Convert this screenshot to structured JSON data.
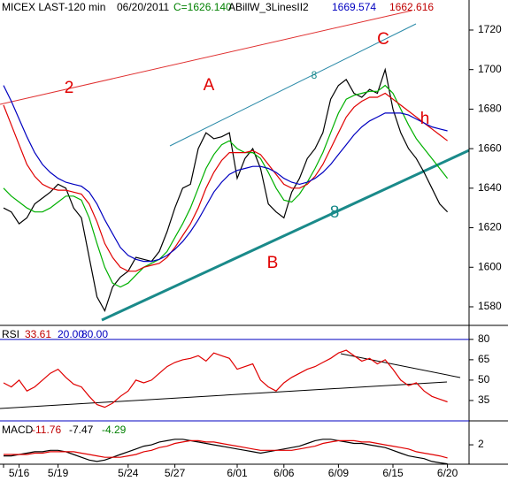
{
  "chart_data": [
    {
      "type": "line",
      "header": [
        {
          "text": "MICEX LAST-120 min",
          "color": "#000000"
        },
        {
          "text": "06/20/2011",
          "color": "#000000"
        },
        {
          "text": "C=1626.140",
          "color": "#008000"
        },
        {
          "text": "ABillW_3LinesII2",
          "color": "#000000"
        },
        {
          "text": "1669.574",
          "color": "#0000c0"
        },
        {
          "text": "1662.616",
          "color": "#c00000"
        }
      ],
      "annotations": [
        {
          "text": "2",
          "color": "#e00000"
        },
        {
          "text": "A",
          "color": "#e00000"
        },
        {
          "text": "C",
          "color": "#e00000"
        },
        {
          "text": "h",
          "color": "#e00000"
        },
        {
          "text": "B",
          "color": "#e00000"
        },
        {
          "text": "8",
          "color": "#1a8a8a"
        },
        {
          "text": "8",
          "color": "#1a8a8a"
        }
      ],
      "categories": [
        "",
        null,
        "5/16",
        null,
        null,
        null,
        null,
        "5/19",
        null,
        null,
        null,
        null,
        null,
        null,
        null,
        null,
        "5/24",
        null,
        null,
        null,
        null,
        null,
        "5/27",
        null,
        null,
        null,
        null,
        null,
        null,
        null,
        "6/01",
        null,
        null,
        null,
        null,
        null,
        "6/06",
        null,
        null,
        null,
        null,
        null,
        null,
        "6/09",
        null,
        null,
        null,
        null,
        null,
        null,
        "6/15",
        null,
        null,
        null,
        null,
        null,
        null,
        "6/20"
      ],
      "series": [
        {
          "color": "#000000",
          "values": [
            1630,
            1628,
            1622,
            1625,
            1632,
            1635,
            1638,
            1642,
            1640,
            1630,
            1625,
            1605,
            1585,
            1578,
            1590,
            1595,
            1598,
            1605,
            1604,
            1603,
            1608,
            1618,
            1630,
            1640,
            1642,
            1660,
            1668,
            1665,
            1666,
            1668,
            1645,
            1655,
            1660,
            1650,
            1632,
            1628,
            1625,
            1638,
            1645,
            1655,
            1660,
            1668,
            1685,
            1692,
            1695,
            1688,
            1686,
            1690,
            1688,
            1700,
            1680,
            1668,
            1660,
            1655,
            1648,
            1640,
            1632,
            1628
          ]
        },
        {
          "color": "#00b000",
          "values": [
            1640,
            1636,
            1633,
            1630,
            1628,
            1628,
            1630,
            1633,
            1636,
            1636,
            1634,
            1625,
            1612,
            1600,
            1592,
            1590,
            1592,
            1596,
            1600,
            1602,
            1604,
            1608,
            1615,
            1622,
            1630,
            1640,
            1650,
            1657,
            1662,
            1664,
            1660,
            1658,
            1658,
            1655,
            1648,
            1640,
            1634,
            1633,
            1637,
            1643,
            1650,
            1658,
            1668,
            1678,
            1685,
            1687,
            1688,
            1689,
            1689,
            1692,
            1688,
            1680,
            1672,
            1665,
            1660,
            1655,
            1650,
            1645
          ]
        },
        {
          "color": "#e00000",
          "values": [
            1682,
            1672,
            1662,
            1652,
            1646,
            1642,
            1640,
            1639,
            1639,
            1638,
            1637,
            1632,
            1623,
            1612,
            1605,
            1600,
            1598,
            1598,
            1600,
            1601,
            1602,
            1605,
            1610,
            1616,
            1622,
            1630,
            1640,
            1648,
            1654,
            1658,
            1658,
            1658,
            1659,
            1657,
            1652,
            1647,
            1642,
            1640,
            1640,
            1642,
            1646,
            1652,
            1660,
            1668,
            1676,
            1681,
            1684,
            1686,
            1686,
            1688,
            1685,
            1682,
            1679,
            1676,
            1673,
            1670,
            1667,
            1664
          ]
        },
        {
          "color": "#0000c0",
          "values": [
            1692,
            1684,
            1675,
            1666,
            1658,
            1652,
            1648,
            1645,
            1643,
            1642,
            1641,
            1638,
            1632,
            1624,
            1617,
            1610,
            1606,
            1604,
            1603,
            1603,
            1604,
            1606,
            1609,
            1613,
            1618,
            1624,
            1631,
            1638,
            1643,
            1647,
            1649,
            1650,
            1651,
            1651,
            1650,
            1648,
            1645,
            1643,
            1642,
            1643,
            1645,
            1648,
            1652,
            1657,
            1662,
            1667,
            1671,
            1674,
            1676,
            1678,
            1678,
            1678,
            1677,
            1675,
            1673,
            1671,
            1670,
            1669
          ]
        }
      ],
      "ylim": [
        1570.6,
        1735.2
      ],
      "yticks": [
        1580,
        1600,
        1620,
        1640,
        1660,
        1680,
        1700,
        1720
      ]
    },
    {
      "type": "line",
      "header": [
        {
          "text": "RSI",
          "color": "#000000"
        },
        {
          "text": "33.61",
          "color": "#c00000"
        },
        {
          "text": "20.00",
          "color": "#0000c0"
        },
        {
          "text": "80.00",
          "color": "#0000c0"
        }
      ],
      "levels": [
        20,
        80
      ],
      "level_color": "#0000c0",
      "series": [
        {
          "color": "#e00000",
          "values": [
            48,
            45,
            50,
            42,
            45,
            50,
            55,
            58,
            52,
            47,
            45,
            38,
            32,
            30,
            33,
            38,
            42,
            50,
            48,
            50,
            55,
            60,
            63,
            65,
            66,
            68,
            64,
            70,
            68,
            66,
            58,
            60,
            62,
            50,
            45,
            42,
            48,
            52,
            55,
            58,
            60,
            63,
            66,
            70,
            72,
            68,
            64,
            66,
            62,
            65,
            58,
            50,
            46,
            48,
            42,
            38,
            36,
            34
          ]
        }
      ],
      "ylim": [
        20,
        89
      ],
      "yticks": [
        35,
        50,
        65,
        80
      ]
    },
    {
      "type": "line",
      "header": [
        {
          "text": "MACD",
          "color": "#000000"
        },
        {
          "text": "-11.76",
          "color": "#c00000"
        },
        {
          "text": "-7.47",
          "color": "#000000"
        },
        {
          "text": "-4.29",
          "color": "#008000"
        }
      ],
      "series": [
        {
          "color": "#000000",
          "values": [
            -6,
            -6,
            -5,
            -4,
            -3,
            -3,
            -2,
            -2,
            -3,
            -5,
            -7,
            -9,
            -10,
            -9,
            -7,
            -5,
            -3,
            -1,
            1,
            2,
            4,
            5,
            6,
            6,
            5,
            4,
            3,
            2,
            1,
            0,
            -1,
            -2,
            -3,
            -4,
            -3,
            -2,
            -1,
            0,
            1,
            3,
            5,
            6,
            6,
            5,
            4,
            3,
            3,
            2,
            1,
            0,
            -2,
            -4,
            -6,
            -7,
            -8,
            -10,
            -11,
            -11.76
          ]
        },
        {
          "color": "#e00000",
          "values": [
            -5,
            -5,
            -5,
            -5,
            -4,
            -4,
            -3,
            -3,
            -3,
            -3,
            -4,
            -5,
            -6,
            -7,
            -7,
            -7,
            -6,
            -5,
            -3,
            -2,
            0,
            1,
            3,
            4,
            5,
            5,
            4,
            4,
            3,
            2,
            1,
            0,
            -1,
            -2,
            -2,
            -2,
            -2,
            -2,
            -1,
            0,
            1,
            3,
            4,
            5,
            5,
            5,
            4,
            4,
            3,
            2,
            1,
            0,
            -1,
            -3,
            -4,
            -5,
            -6,
            -7.47
          ]
        }
      ],
      "ylim": [
        -12,
        18
      ],
      "yticks": [
        2
      ]
    }
  ]
}
